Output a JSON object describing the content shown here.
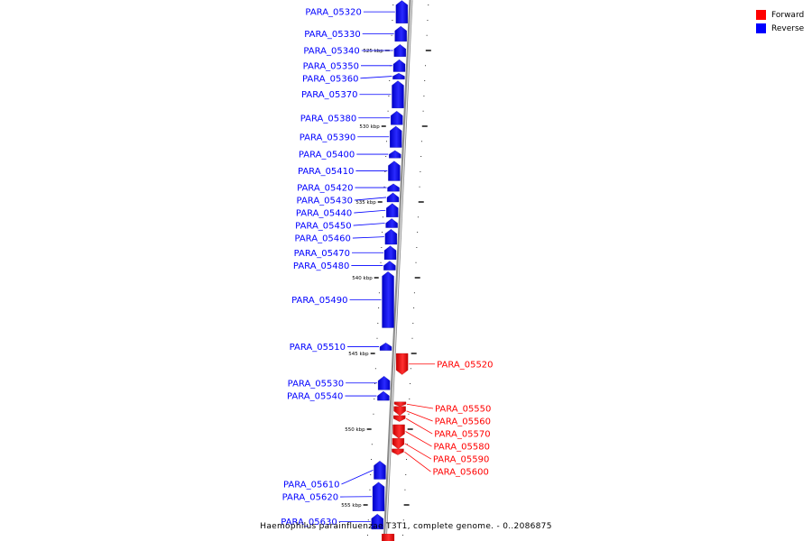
{
  "legend": {
    "forward_label": "Forward",
    "reverse_label": "Reverse",
    "forward_color": "#ff0000",
    "reverse_color": "#0000ff"
  },
  "caption": "Haemophilus parainfluenzae T3T1, complete genome. - 0..2086875",
  "scale": {
    "unit": "kbp",
    "ticks": [
      {
        "label": "525 kbp",
        "value": 525
      },
      {
        "label": "530 kbp",
        "value": 530
      },
      {
        "label": "535 kbp",
        "value": 535
      },
      {
        "label": "540 kbp",
        "value": 540
      },
      {
        "label": "545 kbp",
        "value": 545
      },
      {
        "label": "550 kbp",
        "value": 550
      },
      {
        "label": "555 kbp",
        "value": 555
      }
    ]
  },
  "genes": [
    {
      "name": "PARA_05320",
      "strand": "reverse",
      "start": 521.7,
      "end": 523.2
    },
    {
      "name": "PARA_05330",
      "strand": "reverse",
      "start": 523.4,
      "end": 524.4
    },
    {
      "name": "PARA_05340",
      "strand": "reverse",
      "start": 524.6,
      "end": 525.4
    },
    {
      "name": "PARA_05350",
      "strand": "reverse",
      "start": 525.6,
      "end": 526.4
    },
    {
      "name": "PARA_05360",
      "strand": "reverse",
      "start": 526.5,
      "end": 526.9
    },
    {
      "name": "PARA_05370",
      "strand": "reverse",
      "start": 527.0,
      "end": 528.8
    },
    {
      "name": "PARA_05380",
      "strand": "reverse",
      "start": 529.0,
      "end": 529.9
    },
    {
      "name": "PARA_05390",
      "strand": "reverse",
      "start": 530.0,
      "end": 531.4
    },
    {
      "name": "PARA_05400",
      "strand": "reverse",
      "start": 531.6,
      "end": 532.1
    },
    {
      "name": "PARA_05410",
      "strand": "reverse",
      "start": 532.3,
      "end": 533.6
    },
    {
      "name": "PARA_05420",
      "strand": "reverse",
      "start": 533.8,
      "end": 534.3
    },
    {
      "name": "PARA_05430",
      "strand": "reverse",
      "start": 534.4,
      "end": 535.0
    },
    {
      "name": "PARA_05440",
      "strand": "reverse",
      "start": 535.1,
      "end": 536.0
    },
    {
      "name": "PARA_05450",
      "strand": "reverse",
      "start": 536.1,
      "end": 536.7
    },
    {
      "name": "PARA_05460",
      "strand": "reverse",
      "start": 536.8,
      "end": 537.8
    },
    {
      "name": "PARA_05470",
      "strand": "reverse",
      "start": 537.9,
      "end": 538.8
    },
    {
      "name": "PARA_05480",
      "strand": "reverse",
      "start": 538.9,
      "end": 539.5
    },
    {
      "name": "PARA_05490",
      "strand": "reverse",
      "start": 539.6,
      "end": 543.3
    },
    {
      "name": "PARA_05510",
      "strand": "reverse",
      "start": 544.3,
      "end": 544.8
    },
    {
      "name": "PARA_05520",
      "strand": "forward",
      "start": 545.0,
      "end": 546.4
    },
    {
      "name": "PARA_05530",
      "strand": "reverse",
      "start": 546.5,
      "end": 547.4
    },
    {
      "name": "PARA_05540",
      "strand": "reverse",
      "start": 547.5,
      "end": 548.1
    },
    {
      "name": "PARA_05550",
      "strand": "forward",
      "start": 548.2,
      "end": 548.5
    },
    {
      "name": "PARA_05560",
      "strand": "forward",
      "start": 548.5,
      "end": 549.1
    },
    {
      "name": "PARA_05570",
      "strand": "forward",
      "start": 549.1,
      "end": 549.5
    },
    {
      "name": "PARA_05580",
      "strand": "forward",
      "start": 549.7,
      "end": 550.6
    },
    {
      "name": "PARA_05590",
      "strand": "forward",
      "start": 550.6,
      "end": 551.3
    },
    {
      "name": "PARA_05600",
      "strand": "forward",
      "start": 551.3,
      "end": 551.7
    },
    {
      "name": "PARA_05610",
      "strand": "reverse",
      "start": 552.1,
      "end": 553.3
    },
    {
      "name": "PARA_05620",
      "strand": "reverse",
      "start": 553.5,
      "end": 555.4
    },
    {
      "name": "PARA_05630",
      "strand": "reverse",
      "start": 555.6,
      "end": 556.6
    }
  ]
}
